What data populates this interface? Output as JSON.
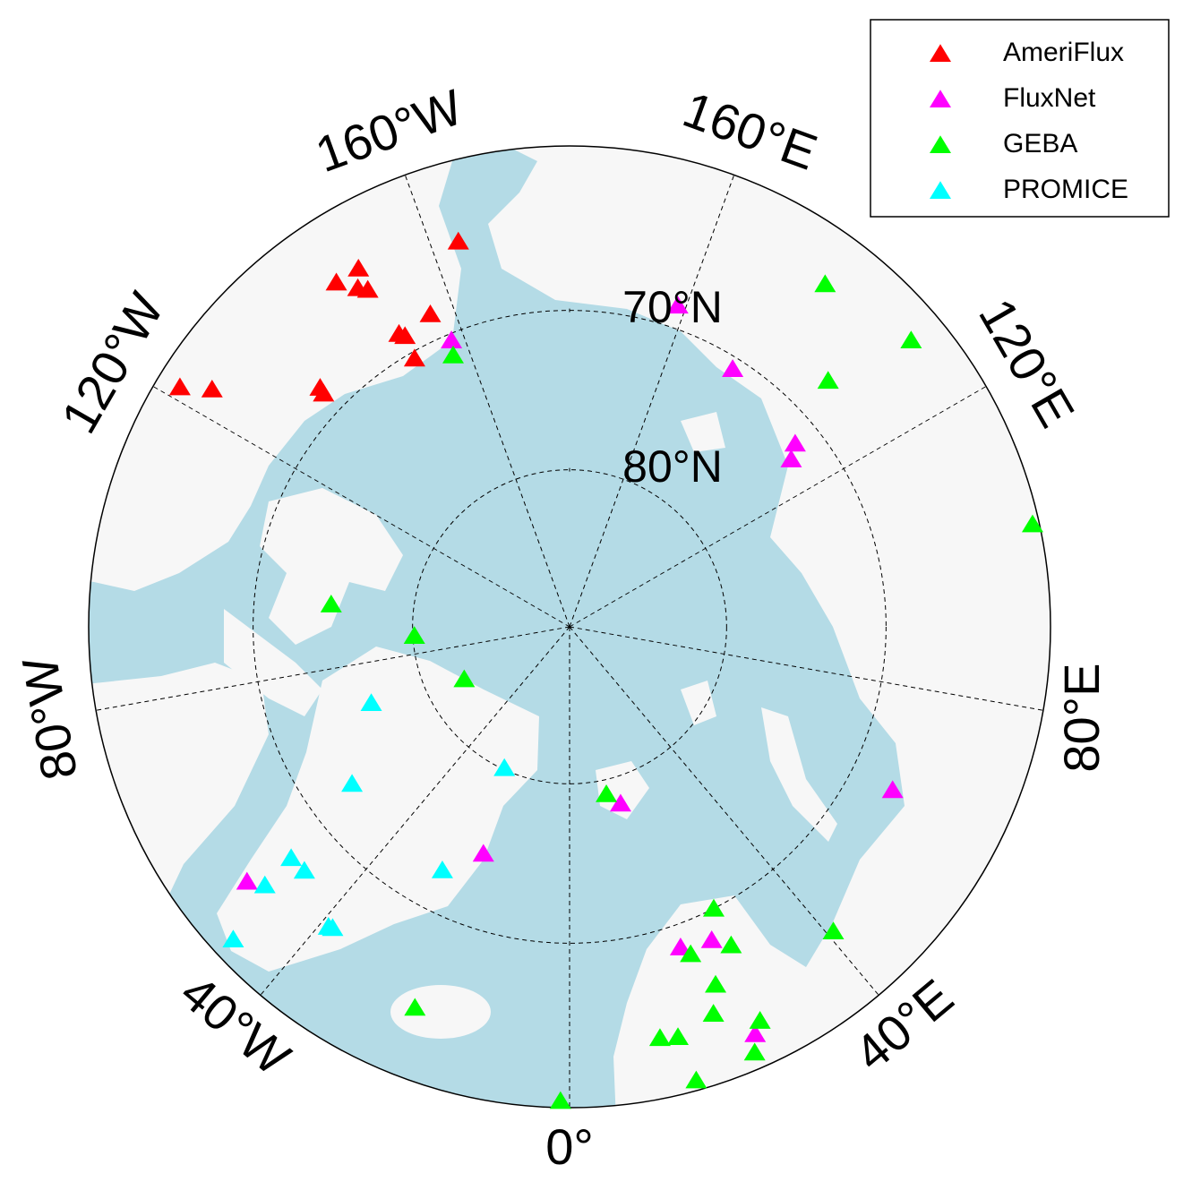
{
  "map": {
    "boundary_lat": 60,
    "meridians": [
      {
        "value": 0,
        "label": "0°"
      },
      {
        "value": 40,
        "label": "40°E"
      },
      {
        "value": 80,
        "label": "80°E"
      },
      {
        "value": 120,
        "label": "120°E"
      },
      {
        "value": 160,
        "label": "160°E"
      },
      {
        "value": -160,
        "label": "160°W"
      },
      {
        "value": -120,
        "label": "120°W"
      },
      {
        "value": -80,
        "label": "80°W"
      },
      {
        "value": -40,
        "label": "40°W"
      }
    ],
    "parallels": [
      {
        "value": 70,
        "label": "70°N"
      },
      {
        "value": 80,
        "label": "80°N"
      }
    ],
    "legend": "upper right",
    "marker": "triangle",
    "series": [
      {
        "name": "AmeriFlux",
        "color": "#ff0000",
        "lon": [
          -163.9,
          -149.5,
          -145.9,
          -148.0,
          -149.1,
          -156.0,
          -149.8,
          -150.5,
          -150.0,
          -121.6,
          -123.6,
          -133.8,
          -133.5
        ],
        "lat": [
          64.8,
          63.9,
          63.9,
          64.9,
          65.3,
          68.4,
          68.6,
          68.9,
          70.4,
          61.4,
          63.1,
          68.2,
          68.6
        ]
      },
      {
        "name": "FluxNet",
        "color": "#ff00ff",
        "lon": [
          161.4,
          -157.6,
          147.7,
          129.1,
          127.1,
          63.2,
          16.1,
          -51.7,
          -20.8,
          19.1,
          24.4,
          24.5
        ],
        "lat": [
          68.6,
          70.4,
          70.7,
          71.6,
          72.4,
          67.2,
          78.3,
          64.2,
          74.6,
          68.6,
          68.3,
          62.0
        ]
      },
      {
        "name": "GEBA",
        "color": "#00ff00",
        "lon": [
          143.3,
          130.0,
          133.6,
          102.5,
          -95.4,
          -86.7,
          -63.6,
          12.4,
          -156.8,
          27.1,
          26.9,
          20.3,
          40.9,
          22.2,
          20.4,
          25.8,
          23.5,
          12.4,
          14.8,
          15.6,
          -22.1,
          -1.1
        ],
        "lat": [
          63.2,
          62.1,
          67.5,
          60.4,
          74.8,
          80.1,
          82.5,
          79.1,
          71.3,
          70.0,
          67.5,
          68.0,
          64.7,
          65.7,
          64.1,
          62.6,
          61.0,
          63.6,
          63.4,
          60.6,
          64.2,
          60.4
        ]
      },
      {
        "name": "PROMICE",
        "color": "#00ffff",
        "lon": [
          -69.0,
          -54.2,
          -24.8,
          -50.3,
          -47.4,
          -49.7,
          -27.6,
          -38.8,
          -38.2,
          -47.1
        ],
        "lat": [
          76.5,
          73.0,
          80.1,
          67.2,
          67.3,
          64.9,
          72.6,
          65.8,
          65.9,
          61.3
        ]
      }
    ]
  }
}
